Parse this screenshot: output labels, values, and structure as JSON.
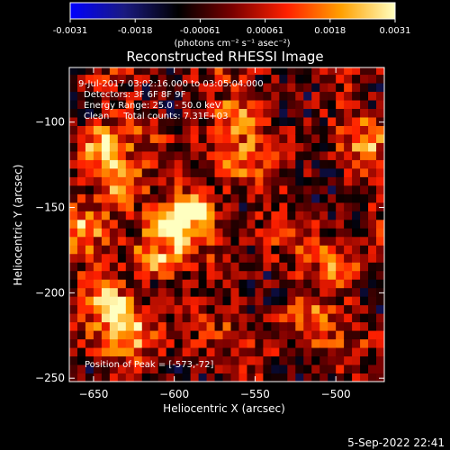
{
  "colorbar": {
    "ticks": [
      "-0.0031",
      "-0.0018",
      "-0.00061",
      "0.00061",
      "0.0018",
      "0.0031"
    ],
    "units": "(photons cm⁻² s⁻¹ asec⁻²)",
    "colors": [
      "#0000ff",
      "#1a1a80",
      "#000000",
      "#7a0000",
      "#ff2000",
      "#ffa000",
      "#ffffc0"
    ]
  },
  "chart_data": {
    "type": "heatmap",
    "title": "Reconstructed RHESSI Image",
    "xlabel": "Heliocentric X (arcsec)",
    "ylabel": "Heliocentric Y (arcsec)",
    "xlim": [
      -665,
      -470
    ],
    "ylim": [
      -252,
      -68
    ],
    "xticks": [
      -650,
      -600,
      -550,
      -500
    ],
    "yticks": [
      -100,
      -150,
      -200,
      -250
    ],
    "zlim": [
      -0.0031,
      0.0031
    ],
    "peak": [
      -573,
      -72
    ],
    "sources": [
      {
        "x": -645,
        "y": -115,
        "amp": 0.0029
      },
      {
        "x": -635,
        "y": -138,
        "amp": 0.0027
      },
      {
        "x": -655,
        "y": -160,
        "amp": 0.002
      },
      {
        "x": -640,
        "y": -205,
        "amp": 0.0028
      },
      {
        "x": -628,
        "y": -222,
        "amp": 0.0026
      },
      {
        "x": -600,
        "y": -160,
        "amp": 0.0031
      },
      {
        "x": -585,
        "y": -150,
        "amp": 0.0027
      },
      {
        "x": -612,
        "y": -180,
        "amp": 0.0022
      },
      {
        "x": -565,
        "y": -125,
        "amp": 0.002
      },
      {
        "x": -560,
        "y": -95,
        "amp": 0.0018
      },
      {
        "x": -495,
        "y": -185,
        "amp": 0.0022
      },
      {
        "x": -520,
        "y": -215,
        "amp": 0.0016
      },
      {
        "x": -480,
        "y": -110,
        "amp": 0.0015
      }
    ]
  },
  "annotations": {
    "time_range": "9-Jul-2017 03:02:16.000 to 03:05:04.000",
    "detectors": "Detectors: 3F 6F 8F 9F",
    "energy": "Energy Range: 25.0 - 50.0 keV",
    "clean": "Clean     Total counts: 7.31E+03",
    "peak_label": "Position of Peak = [-573,-72]"
  },
  "timestamp": "5-Sep-2022 22:41"
}
